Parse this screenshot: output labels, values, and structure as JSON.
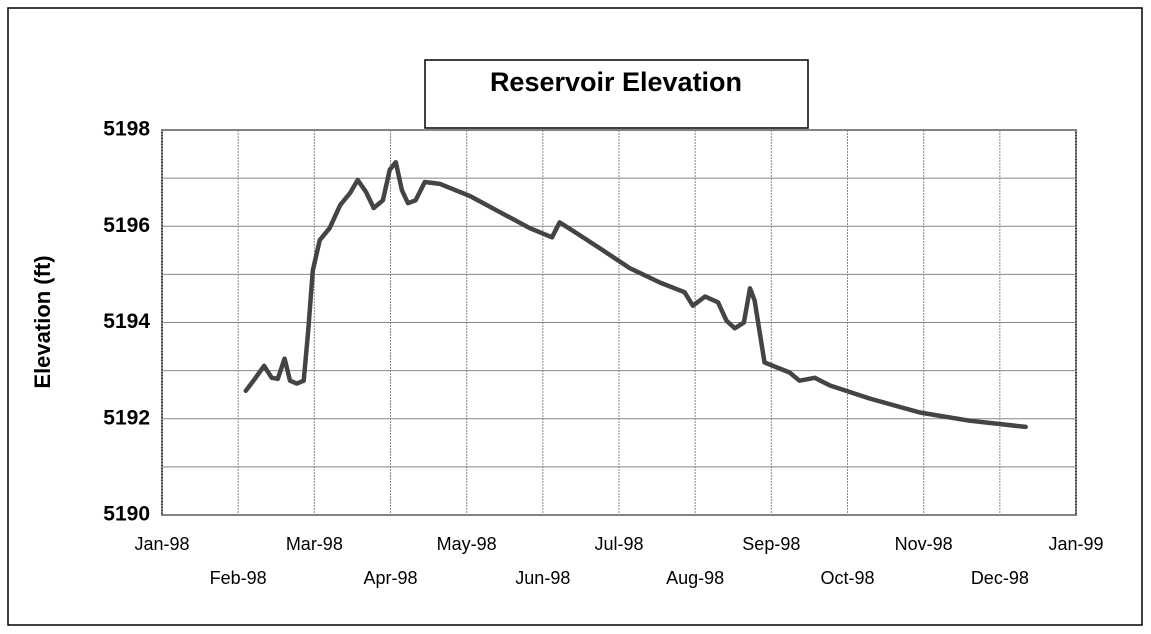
{
  "chart_data": {
    "type": "line",
    "title": "Reservoir Elevation",
    "y_label": "Elevation (ft)",
    "x": [
      1.1,
      1.22,
      1.34,
      1.44,
      1.52,
      1.61,
      1.68,
      1.77,
      1.86,
      1.92,
      1.98,
      2.07,
      2.2,
      2.34,
      2.47,
      2.57,
      2.68,
      2.78,
      2.9,
      2.99,
      3.07,
      3.15,
      3.23,
      3.33,
      3.45,
      3.65,
      4.04,
      4.44,
      4.83,
      5.12,
      5.22,
      5.42,
      5.75,
      6.14,
      6.54,
      6.86,
      6.97,
      7.13,
      7.3,
      7.41,
      7.52,
      7.64,
      7.72,
      7.78,
      7.85,
      7.91,
      8.24,
      8.37,
      8.57,
      8.77,
      9.29,
      9.95,
      10.6,
      11.34
    ],
    "values": [
      5192.58,
      5192.83,
      5193.1,
      5192.85,
      5192.83,
      5193.25,
      5192.79,
      5192.73,
      5192.79,
      5193.83,
      5195.08,
      5195.71,
      5195.96,
      5196.44,
      5196.69,
      5196.96,
      5196.71,
      5196.38,
      5196.54,
      5197.17,
      5197.33,
      5196.75,
      5196.48,
      5196.54,
      5196.92,
      5196.88,
      5196.63,
      5196.29,
      5195.96,
      5195.77,
      5196.08,
      5195.88,
      5195.54,
      5195.13,
      5194.83,
      5194.63,
      5194.35,
      5194.54,
      5194.42,
      5194.04,
      5193.88,
      5194.0,
      5194.71,
      5194.46,
      5193.77,
      5193.17,
      5192.96,
      5192.79,
      5192.85,
      5192.69,
      5192.42,
      5192.13,
      5191.96,
      5191.83
    ],
    "color": "#444444",
    "xlim": [
      0,
      12
    ],
    "xticks": [
      {
        "value": 0,
        "label": "Jan-98"
      },
      {
        "value": 1,
        "label": "Feb-98"
      },
      {
        "value": 2,
        "label": "Mar-98"
      },
      {
        "value": 3,
        "label": "Apr-98"
      },
      {
        "value": 4,
        "label": "May-98"
      },
      {
        "value": 5,
        "label": "Jun-98"
      },
      {
        "value": 6,
        "label": "Jul-98"
      },
      {
        "value": 7,
        "label": "Aug-98"
      },
      {
        "value": 8,
        "label": "Sep-98"
      },
      {
        "value": 9,
        "label": "Oct-98"
      },
      {
        "value": 10,
        "label": "Nov-98"
      },
      {
        "value": 11,
        "label": "Dec-98"
      },
      {
        "value": 12,
        "label": "Jan-99"
      }
    ],
    "ylim": [
      5190,
      5198
    ],
    "yticks": [
      5190,
      5192,
      5194,
      5196,
      5198
    ],
    "yminor_ticks": [
      5191,
      5193,
      5195,
      5197
    ],
    "grid": true
  }
}
